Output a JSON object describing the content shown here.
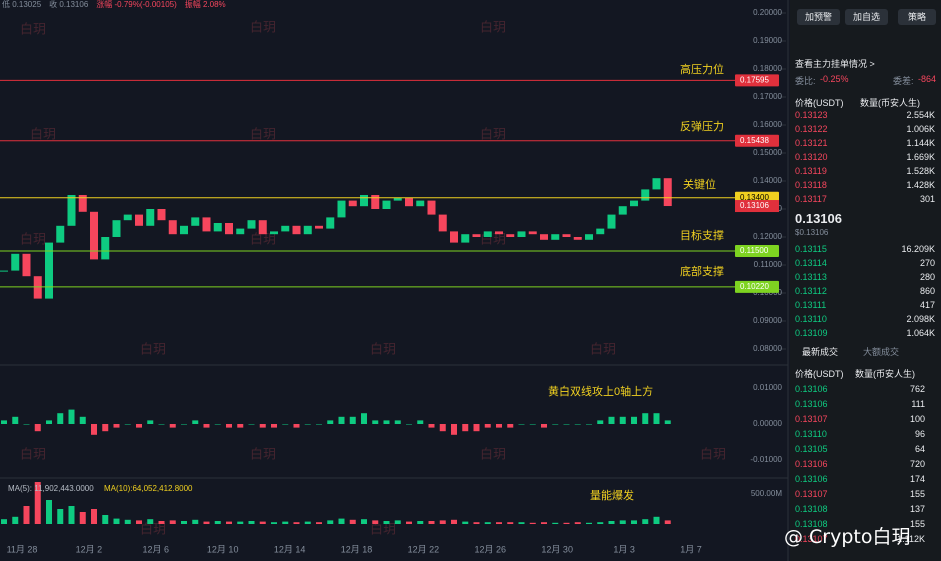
{
  "header": {
    "stats": [
      {
        "text": "低 0.13025",
        "color": "#848e9c"
      },
      {
        "text": "收 0.13106",
        "color": "#848e9c"
      },
      {
        "text": "涨幅 -0.79%(-0.00105)",
        "color": "#f6465d"
      },
      {
        "text": "振幅 2.08%",
        "color": "#f6465d"
      }
    ]
  },
  "watermark": "白玥",
  "brand": "@ Crypto白玥",
  "chart_data": {
    "type": "candlestick",
    "closes": [
      0.108,
      0.114,
      0.106,
      0.098,
      0.118,
      0.124,
      0.135,
      0.129,
      0.112,
      0.12,
      0.126,
      0.128,
      0.124,
      0.13,
      0.126,
      0.121,
      0.124,
      0.127,
      0.122,
      0.125,
      0.121,
      0.123,
      0.126,
      0.121,
      0.122,
      0.124,
      0.121,
      0.124,
      0.123,
      0.127,
      0.133,
      0.131,
      0.135,
      0.13,
      0.133,
      0.134,
      0.131,
      0.133,
      0.128,
      0.122,
      0.118,
      0.121,
      0.12,
      0.122,
      0.121,
      0.12,
      0.122,
      0.121,
      0.119,
      0.121,
      0.12,
      0.119,
      0.121,
      0.123,
      0.128,
      0.131,
      0.133,
      0.137,
      0.141,
      0.13106
    ],
    "up_color": "#0ecb81",
    "down_color": "#f6465d",
    "ylim": [
      0.08,
      0.2
    ],
    "yticks": [
      {
        "value": 0.2,
        "label": "0.20000"
      },
      {
        "value": 0.19,
        "label": "0.19000"
      },
      {
        "value": 0.18,
        "label": "0.18000"
      },
      {
        "value": 0.17,
        "label": "0.17000"
      },
      {
        "value": 0.16,
        "label": "0.16000"
      },
      {
        "value": 0.15,
        "label": "0.15000"
      },
      {
        "value": 0.14,
        "label": "0.14000"
      },
      {
        "value": 0.13,
        "label": "0.13000"
      },
      {
        "value": 0.12,
        "label": "0.12000"
      },
      {
        "value": 0.11,
        "label": "0.11000"
      },
      {
        "value": 0.1,
        "label": "0.10000"
      },
      {
        "value": 0.09,
        "label": "0.09000"
      },
      {
        "value": 0.08,
        "label": "0.08000"
      }
    ],
    "levels": [
      {
        "price": 0.17595,
        "note": "高压力位",
        "color": "#e0303c"
      },
      {
        "price": 0.15438,
        "note": "反弹压力",
        "color": "#e0303c"
      },
      {
        "price": {
          "value": 0.134,
          "label": "0.13400"
        },
        "note": "关键位",
        "color": "#f0d020"
      },
      {
        "price": {
          "value": 0.115,
          "label": "0.11500"
        },
        "note": "目标支撑",
        "color": "#7ed321"
      },
      {
        "price": {
          "value": 0.1022,
          "label": "0.10220"
        },
        "note": "底部支撑",
        "color": "#7ed321"
      }
    ],
    "current_price": 0.13106,
    "xlabels": [
      "11月 28",
      "12月 2",
      "12月 6",
      "12月 10",
      "12月 14",
      "12月 18",
      "12月 22",
      "12月 26",
      "12月 30",
      "1月 3",
      "1月 7"
    ],
    "macd": {
      "values": [
        0.001,
        0.002,
        0.0,
        -0.002,
        0.001,
        0.003,
        0.004,
        0.002,
        -0.003,
        -0.002,
        -0.001,
        0.0,
        -0.001,
        0.001,
        0.0,
        -0.001,
        0.0,
        0.001,
        -0.001,
        0.0,
        -0.001,
        -0.001,
        0.0,
        -0.001,
        -0.001,
        0.0,
        -0.001,
        0.0,
        0.0,
        0.001,
        0.002,
        0.002,
        0.003,
        0.001,
        0.001,
        0.001,
        0.0,
        0.001,
        -0.001,
        -0.002,
        -0.003,
        -0.002,
        -0.002,
        -0.001,
        -0.001,
        -0.001,
        0.0,
        0.0,
        -0.001,
        0.0,
        0.0,
        0.0,
        0.0,
        0.001,
        0.002,
        0.002,
        0.002,
        0.003,
        0.003,
        0.001
      ],
      "ylim": [
        -0.01,
        0.01
      ],
      "yticks": [
        {
          "value": 0.01,
          "label": "0.01000"
        },
        {
          "value": 0,
          "label": "0.00000"
        },
        {
          "value": -0.01,
          "label": "-0.01000"
        }
      ],
      "note": "黄白双线攻上0轴上方"
    },
    "volume": {
      "values": [
        80000000,
        120000000,
        300000000,
        700000000,
        400000000,
        250000000,
        300000000,
        200000000,
        250000000,
        150000000,
        90000000,
        70000000,
        60000000,
        80000000,
        50000000,
        60000000,
        50000000,
        70000000,
        40000000,
        50000000,
        40000000,
        40000000,
        50000000,
        40000000,
        30000000,
        40000000,
        30000000,
        40000000,
        30000000,
        60000000,
        90000000,
        70000000,
        80000000,
        60000000,
        50000000,
        60000000,
        40000000,
        50000000,
        50000000,
        60000000,
        70000000,
        40000000,
        30000000,
        30000000,
        30000000,
        30000000,
        30000000,
        20000000,
        30000000,
        20000000,
        20000000,
        30000000,
        20000000,
        30000000,
        50000000,
        60000000,
        60000000,
        80000000,
        120000000,
        60000000
      ],
      "ylim": [
        0,
        500000000
      ],
      "yticks": [
        {
          "value": 500000000,
          "label": "500.00M"
        }
      ],
      "ma5": "MA(5): 11,902,443.0000",
      "ma10": "MA(10):64,052,412.8000",
      "note": "量能爆发"
    }
  },
  "order_book": {
    "buttons": [
      "加预警",
      "加自选",
      "策略"
    ],
    "link": "查看主力挂单情况 >",
    "ratio_label": "委比:",
    "ratio": "-0.25%",
    "diff_label": "委差:",
    "diff": "-864",
    "header": [
      "价格(USDT)",
      "数量(币安人生)"
    ],
    "asks": [
      [
        "0.13123",
        "2.554K"
      ],
      [
        "0.13122",
        "1.006K"
      ],
      [
        "0.13121",
        "1.144K"
      ],
      [
        "0.13120",
        "1.669K"
      ],
      [
        "0.13119",
        "1.528K"
      ],
      [
        "0.13118",
        "1.428K"
      ],
      [
        "0.13117",
        "301"
      ]
    ],
    "last": "0.13106",
    "last_usd": "$0.13106",
    "bids": [
      [
        "0.13115",
        "16.209K"
      ],
      [
        "0.13114",
        "270"
      ],
      [
        "0.13113",
        "280"
      ],
      [
        "0.13112",
        "860"
      ],
      [
        "0.13111",
        "417"
      ],
      [
        "0.13110",
        "2.098K"
      ],
      [
        "0.13109",
        "1.064K"
      ]
    ],
    "tabs": [
      "最新成交",
      "大额成交"
    ],
    "trades": [
      {
        "price": "0.13106",
        "qty": "762",
        "side": "buy"
      },
      {
        "price": "0.13106",
        "qty": "111",
        "side": "buy"
      },
      {
        "price": "0.13107",
        "qty": "100",
        "side": "sell"
      },
      {
        "price": "0.13110",
        "qty": "96",
        "side": "buy"
      },
      {
        "price": "0.13105",
        "qty": "64",
        "side": "buy"
      },
      {
        "price": "0.13106",
        "qty": "720",
        "side": "sell"
      },
      {
        "price": "0.13106",
        "qty": "174",
        "side": "buy"
      },
      {
        "price": "0.13107",
        "qty": "155",
        "side": "sell"
      },
      {
        "price": "0.13108",
        "qty": "137",
        "side": "buy"
      },
      {
        "price": "0.13108",
        "qty": "155",
        "side": "buy"
      },
      {
        "price": "0.13107",
        "qty": "1.112K",
        "side": "sell"
      }
    ]
  }
}
